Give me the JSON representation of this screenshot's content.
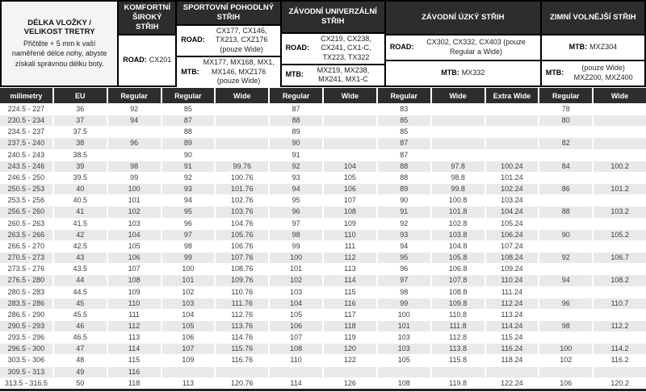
{
  "header": {
    "title": "DÉLKA VLOŽKY / VELIKOST TRETRY",
    "note": "Přičtěte + 5 mm k vaší naměřené délce nohy, abyste získali správnou délku boty."
  },
  "colors": {
    "header_dark": "#2d2d2d",
    "stripe_gray": "#e9e9e9",
    "title_bg": "#f4f4f4"
  },
  "categories": [
    {
      "name": "KOMFORTNÍ ŠIROKÝ STŘIH",
      "span_cols": 1,
      "model_rows": [
        {
          "label": "ROAD:",
          "models": "CX201"
        }
      ]
    },
    {
      "name": "SPORTOVNÍ POHODLNÝ STŘIH",
      "span_cols": 2,
      "model_rows": [
        {
          "label": "ROAD:",
          "models": "CX177, CX146, TX213, CXZ176 (pouze Wide)"
        },
        {
          "label": "MTB:",
          "models": "MX177, MX168, MX1, MX146, MXZ176 (pouze Wide)"
        }
      ]
    },
    {
      "name": "ZÁVODNÍ UNIVERZÁLNÍ STŘIH",
      "span_cols": 2,
      "model_rows": [
        {
          "label": "ROAD:",
          "models": "CX219, CX238, CX241, CX1-C, TX223, TX322"
        },
        {
          "label": "MTB:",
          "models": "MX219, MX238, MX241, MX1-C"
        }
      ]
    },
    {
      "name": "ZÁVODNÍ ÚZKÝ STŘIH",
      "span_cols": 3,
      "model_rows": [
        {
          "label": "ROAD:",
          "models": "CX302, CX332, CX403 (pouze Regular a Wide)"
        },
        {
          "label": "MTB:",
          "models": "MX332"
        }
      ]
    },
    {
      "name": "ZIMNÍ VOLNĚJŠÍ STŘIH",
      "span_cols": 2,
      "model_rows": [
        {
          "label": "MTB:",
          "models": "MXZ304"
        },
        {
          "label": "MTB:",
          "models": "(pouze Wide) MXZ200, MXZ400"
        }
      ]
    }
  ],
  "column_headers": [
    "milimetry",
    "EU",
    "Regular",
    "Regular",
    "Wide",
    "Regular",
    "Wide",
    "Regular",
    "Wide",
    "Extra Wide",
    "Regular",
    "Wide"
  ],
  "rows": [
    [
      "224.5 - 227",
      "36",
      "92",
      "85",
      "",
      "87",
      "",
      "83",
      "",
      "",
      "78",
      ""
    ],
    [
      "230.5 - 234",
      "37",
      "94",
      "87",
      "",
      "88",
      "",
      "85",
      "",
      "",
      "80",
      ""
    ],
    [
      "234.5 - 237",
      "37.5",
      "",
      "88",
      "",
      "89",
      "",
      "85",
      "",
      "",
      "",
      ""
    ],
    [
      "237.5 - 240",
      "38",
      "96",
      "89",
      "",
      "90",
      "",
      "87",
      "",
      "",
      "82",
      ""
    ],
    [
      "240.5 - 243",
      "38.5",
      "",
      "90",
      "",
      "91",
      "",
      "87",
      "",
      "",
      "",
      ""
    ],
    [
      "243.5 - 246",
      "39",
      "98",
      "91",
      "99.76",
      "92",
      "104",
      "88",
      "97.8",
      "100.24",
      "84",
      "100.2"
    ],
    [
      "246.5 - 250",
      "39.5",
      "99",
      "92",
      "100.76",
      "93",
      "105",
      "88",
      "98.8",
      "101.24",
      "",
      ""
    ],
    [
      "250.5 - 253",
      "40",
      "100",
      "93",
      "101.76",
      "94",
      "106",
      "89",
      "99.8",
      "102.24",
      "86",
      "101.2"
    ],
    [
      "253.5 - 256",
      "40.5",
      "101",
      "94",
      "102.76",
      "95",
      "107",
      "90",
      "100.8",
      "103.24",
      "",
      ""
    ],
    [
      "256.5 - 260",
      "41",
      "102",
      "95",
      "103.76",
      "96",
      "108",
      "91",
      "101.8",
      "104.24",
      "88",
      "103.2"
    ],
    [
      "260.5 - 263",
      "41.5",
      "103",
      "96",
      "104.76",
      "97",
      "109",
      "92",
      "102.8",
      "105.24",
      "",
      ""
    ],
    [
      "263.5 - 266",
      "42",
      "104",
      "97",
      "105.76",
      "98",
      "110",
      "93",
      "103.8",
      "106.24",
      "90",
      "105.2"
    ],
    [
      "266.5 - 270",
      "42.5",
      "105",
      "98",
      "106.76",
      "99",
      "111",
      "94",
      "104.8",
      "107.24",
      "",
      ""
    ],
    [
      "270.5 - 273",
      "43",
      "106",
      "99",
      "107.76",
      "100",
      "112",
      "95",
      "105.8",
      "108.24",
      "92",
      "106.7"
    ],
    [
      "273.5 - 276",
      "43.5",
      "107",
      "100",
      "108.76",
      "101",
      "113",
      "96",
      "106.8",
      "109.24",
      "",
      ""
    ],
    [
      "276.5 - 280",
      "44",
      "108",
      "101",
      "109.76",
      "102",
      "114",
      "97",
      "107.8",
      "110.24",
      "94",
      "108.2"
    ],
    [
      "280.5 - 283",
      "44.5",
      "109",
      "102",
      "110.76",
      "103",
      "115",
      "98",
      "108.8",
      "111.24",
      "",
      ""
    ],
    [
      "283.5 - 286",
      "45",
      "110",
      "103",
      "111.76",
      "104",
      "116",
      "99",
      "109.8",
      "112.24",
      "96",
      "110.7"
    ],
    [
      "286.5 - 290",
      "45.5",
      "111",
      "104",
      "112.76",
      "105",
      "117",
      "100",
      "110.8",
      "113.24",
      "",
      ""
    ],
    [
      "290.5 - 293",
      "46",
      "112",
      "105",
      "113.76",
      "106",
      "118",
      "101",
      "111.8",
      "114.24",
      "98",
      "112.2"
    ],
    [
      "293.5 - 296",
      "46.5",
      "113",
      "106",
      "114.76",
      "107",
      "119",
      "103",
      "112.8",
      "115.24",
      "",
      ""
    ],
    [
      "296.5 - 300",
      "47",
      "114",
      "107",
      "115.76",
      "108",
      "120",
      "103",
      "113.8",
      "116.24",
      "100",
      "114.2"
    ],
    [
      "303.5 - 306",
      "48",
      "115",
      "109",
      "116.76",
      "110",
      "122",
      "105",
      "115.8",
      "118.24",
      "102",
      "116.2"
    ],
    [
      "309.5 - 313",
      "49",
      "116",
      "",
      "",
      "",
      "",
      "",
      "",
      "",
      "",
      ""
    ],
    [
      "313.5 - 316.5",
      "50",
      "118",
      "113",
      "120.76",
      "114",
      "126",
      "108",
      "119.8",
      "122.24",
      "106",
      "120.2"
    ]
  ]
}
